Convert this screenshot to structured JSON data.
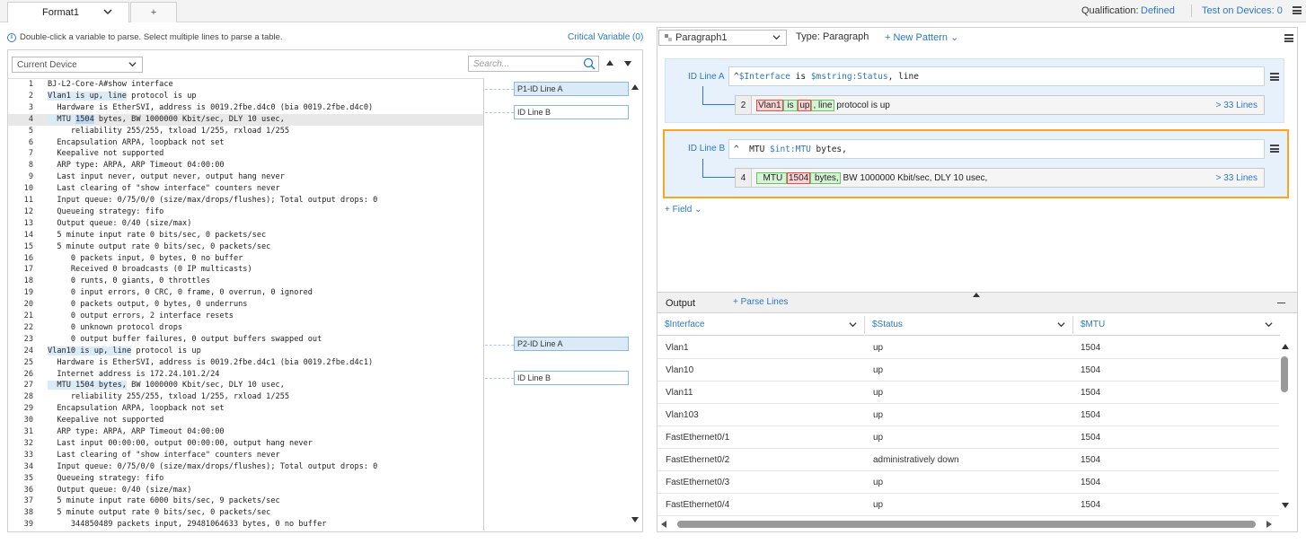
{
  "tabs": {
    "format_tab": "Format1",
    "add_tab": "+"
  },
  "header": {
    "qualification_label": "Qualification:",
    "qualification_value": "Defined",
    "test_label": "Test on Devices: 0"
  },
  "left": {
    "info": "Double-click a variable to parse. Select multiple lines to parse a table.",
    "critical": "Critical Variable (0)",
    "device_select": "Current Device",
    "search_placeholder": "Search...",
    "lines": [
      {
        "n": "1",
        "t": "BJ-L2-Core-A#show interface"
      },
      {
        "n": "2",
        "t": "Vlan1 is up, line protocol is up"
      },
      {
        "n": "3",
        "t": "  Hardware is EtherSVI, address is 0019.2fbe.d4c0 (bia 0019.2fbe.d4c0)"
      },
      {
        "n": "4",
        "t": "  MTU 1504 bytes, BW 1000000 Kbit/sec, DLY 10 usec,"
      },
      {
        "n": "5",
        "t": "     reliability 255/255, txload 1/255, rxload 1/255"
      },
      {
        "n": "6",
        "t": "  Encapsulation ARPA, loopback not set"
      },
      {
        "n": "7",
        "t": "  Keepalive not supported"
      },
      {
        "n": "8",
        "t": "  ARP type: ARPA, ARP Timeout 04:00:00"
      },
      {
        "n": "9",
        "t": "  Last input never, output never, output hang never"
      },
      {
        "n": "10",
        "t": "  Last clearing of \"show interface\" counters never"
      },
      {
        "n": "11",
        "t": "  Input queue: 0/75/0/0 (size/max/drops/flushes); Total output drops: 0"
      },
      {
        "n": "12",
        "t": "  Queueing strategy: fifo"
      },
      {
        "n": "13",
        "t": "  Output queue: 0/40 (size/max)"
      },
      {
        "n": "14",
        "t": "  5 minute input rate 0 bits/sec, 0 packets/sec"
      },
      {
        "n": "15",
        "t": "  5 minute output rate 0 bits/sec, 0 packets/sec"
      },
      {
        "n": "16",
        "t": "     0 packets input, 0 bytes, 0 no buffer"
      },
      {
        "n": "17",
        "t": "     Received 0 broadcasts (0 IP multicasts)"
      },
      {
        "n": "18",
        "t": "     0 runts, 0 giants, 0 throttles"
      },
      {
        "n": "19",
        "t": "     0 input errors, 0 CRC, 0 frame, 0 overrun, 0 ignored"
      },
      {
        "n": "20",
        "t": "     0 packets output, 0 bytes, 0 underruns"
      },
      {
        "n": "21",
        "t": "     0 output errors, 2 interface resets"
      },
      {
        "n": "22",
        "t": "     0 unknown protocol drops"
      },
      {
        "n": "23",
        "t": "     0 output buffer failures, 0 output buffers swapped out"
      },
      {
        "n": "24",
        "t": "Vlan10 is up, line protocol is up"
      },
      {
        "n": "25",
        "t": "  Hardware is EtherSVI, address is 0019.2fbe.d4c1 (bia 0019.2fbe.d4c1)"
      },
      {
        "n": "26",
        "t": "  Internet address is 172.24.101.2/24"
      },
      {
        "n": "27",
        "t": "  MTU 1504 bytes, BW 1000000 Kbit/sec, DLY 10 usec,"
      },
      {
        "n": "28",
        "t": "     reliability 255/255, txload 1/255, rxload 1/255"
      },
      {
        "n": "29",
        "t": "  Encapsulation ARPA, loopback not set"
      },
      {
        "n": "30",
        "t": "  Keepalive not supported"
      },
      {
        "n": "31",
        "t": "  ARP type: ARPA, ARP Timeout 04:00:00"
      },
      {
        "n": "32",
        "t": "  Last input 00:00:00, output 00:00:00, output hang never"
      },
      {
        "n": "33",
        "t": "  Last clearing of \"show interface\" counters never"
      },
      {
        "n": "34",
        "t": "  Input queue: 0/75/0/0 (size/max/drops/flushes); Total output drops: 0"
      },
      {
        "n": "35",
        "t": "  Queueing strategy: fifo"
      },
      {
        "n": "36",
        "t": "  Output queue: 0/40 (size/max)"
      },
      {
        "n": "37",
        "t": "  5 minute input rate 6000 bits/sec, 9 packets/sec"
      },
      {
        "n": "38",
        "t": "  5 minute output rate 0 bits/sec, 0 packets/sec"
      },
      {
        "n": "39",
        "t": "     344850489 packets input, 29481064633 bytes, 0 no buffer"
      }
    ],
    "labels": [
      "P1-ID Line A",
      "ID Line B",
      "P2-ID Line A",
      "ID Line B"
    ]
  },
  "right": {
    "paragraph_select": "Paragraph1",
    "type_label": "Type: Paragraph",
    "new_pattern": "+ New Pattern",
    "idA": {
      "label": "ID Line A",
      "regex_prefix": "^",
      "regex_v1": "$Interface",
      "regex_mid": " is ",
      "regex_v2": "$mstring:Status",
      "regex_suffix": ", line",
      "num": "2",
      "p1": "Vlan1",
      "p2": " is ",
      "p3": "up",
      "p4": ", line",
      "rest": " protocol is up",
      "lines": "33 Lines"
    },
    "idB": {
      "label": "ID Line B",
      "regex_prefix": "^  MTU ",
      "regex_v1": "$int:MTU",
      "regex_suffix": " bytes,",
      "num": "4",
      "p1": "  MTU ",
      "p2": "1504",
      "p3": " bytes,",
      "rest": " BW 1000000 Kbit/sec, DLY 10 usec,",
      "lines": "33 Lines"
    },
    "field": "+ Field",
    "output": {
      "title": "Output",
      "parse": "+ Parse Lines",
      "columns": [
        "$Interface",
        "$Status",
        "$MTU"
      ],
      "rows": [
        [
          "Vlan1",
          "up",
          "1504"
        ],
        [
          "Vlan10",
          "up",
          "1504"
        ],
        [
          "Vlan11",
          "up",
          "1504"
        ],
        [
          "Vlan103",
          "up",
          "1504"
        ],
        [
          "FastEthernet0/1",
          "up",
          "1504"
        ],
        [
          "FastEthernet0/2",
          "administratively down",
          "1504"
        ],
        [
          "FastEthernet0/3",
          "up",
          "1504"
        ],
        [
          "FastEthernet0/4",
          "up",
          "1504"
        ]
      ]
    }
  }
}
